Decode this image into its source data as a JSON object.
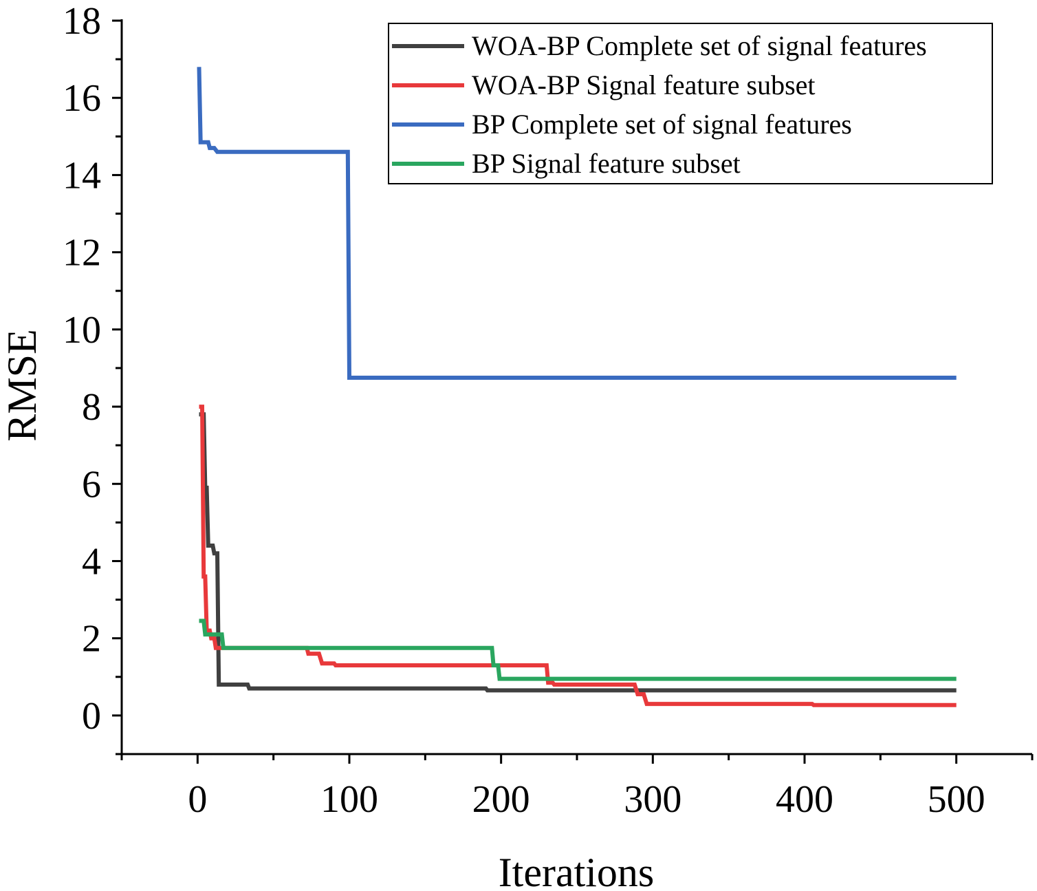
{
  "chart_data": {
    "type": "line",
    "title": "",
    "xlabel": "Iterations",
    "ylabel": "RMSE",
    "xlim": [
      -50,
      550
    ],
    "ylim": [
      -1,
      18
    ],
    "x_ticks": [
      0,
      100,
      200,
      300,
      400,
      500
    ],
    "x_tick_labels": [
      "0",
      "100",
      "200",
      "300",
      "400",
      "500"
    ],
    "y_ticks": [
      0,
      2,
      4,
      6,
      8,
      10,
      12,
      14,
      16,
      18
    ],
    "y_tick_labels": [
      "0",
      "2",
      "4",
      "6",
      "8",
      "10",
      "12",
      "14",
      "16",
      "18"
    ],
    "grid": false,
    "legend_position": "top-right",
    "series": [
      {
        "name": "WOA-BP Complete set of signal features",
        "color": "#404040",
        "points": [
          [
            1,
            7.8
          ],
          [
            4,
            7.8
          ],
          [
            5,
            5.9
          ],
          [
            6,
            5.9
          ],
          [
            7,
            4.4
          ],
          [
            10,
            4.4
          ],
          [
            11,
            4.2
          ],
          [
            13,
            4.2
          ],
          [
            14,
            0.8
          ],
          [
            33,
            0.8
          ],
          [
            34,
            0.7
          ],
          [
            190,
            0.7
          ],
          [
            191,
            0.65
          ],
          [
            500,
            0.65
          ]
        ]
      },
      {
        "name": "WOA-BP Signal feature subset",
        "color": "#e8393b",
        "points": [
          [
            1,
            8.0
          ],
          [
            3,
            8.0
          ],
          [
            4,
            3.6
          ],
          [
            5,
            3.6
          ],
          [
            6,
            2.2
          ],
          [
            8,
            2.2
          ],
          [
            9,
            2.0
          ],
          [
            11,
            2.0
          ],
          [
            12,
            1.75
          ],
          [
            72,
            1.75
          ],
          [
            73,
            1.6
          ],
          [
            80,
            1.6
          ],
          [
            82,
            1.35
          ],
          [
            90,
            1.35
          ],
          [
            91,
            1.3
          ],
          [
            230,
            1.3
          ],
          [
            231,
            0.85
          ],
          [
            234,
            0.85
          ],
          [
            235,
            0.8
          ],
          [
            288,
            0.8
          ],
          [
            290,
            0.55
          ],
          [
            294,
            0.55
          ],
          [
            296,
            0.3
          ],
          [
            405,
            0.3
          ],
          [
            406,
            0.27
          ],
          [
            500,
            0.27
          ]
        ]
      },
      {
        "name": "BP Complete set of signal features",
        "color": "#3a6bc0",
        "points": [
          [
            1,
            16.8
          ],
          [
            2,
            14.85
          ],
          [
            7,
            14.85
          ],
          [
            8,
            14.7
          ],
          [
            11,
            14.7
          ],
          [
            13,
            14.6
          ],
          [
            99,
            14.6
          ],
          [
            100,
            8.75
          ],
          [
            500,
            8.75
          ]
        ]
      },
      {
        "name": "BP Signal feature subset",
        "color": "#2aa65f",
        "points": [
          [
            1,
            2.45
          ],
          [
            4,
            2.45
          ],
          [
            5,
            2.1
          ],
          [
            16,
            2.1
          ],
          [
            17,
            1.75
          ],
          [
            194,
            1.75
          ],
          [
            195,
            1.3
          ],
          [
            198,
            1.3
          ],
          [
            199,
            0.95
          ],
          [
            500,
            0.95
          ]
        ]
      }
    ]
  }
}
